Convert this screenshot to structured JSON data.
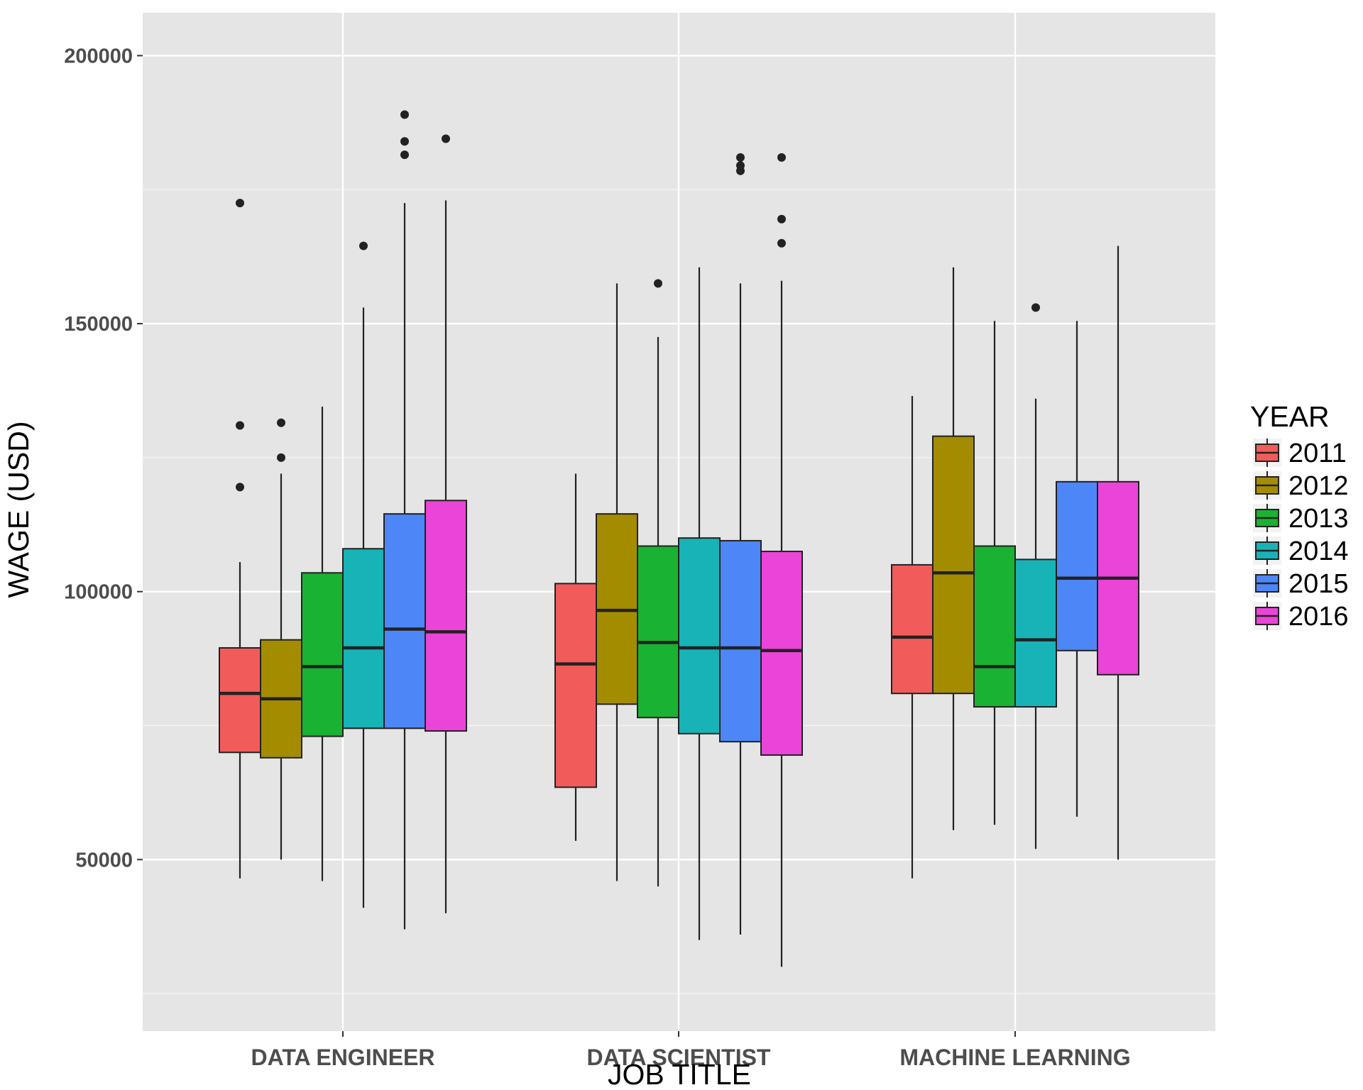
{
  "chart_data": {
    "type": "boxplot",
    "xlabel": "JOB TITLE",
    "ylabel": "WAGE (USD)",
    "ylim": [
      18000,
      208000
    ],
    "y_ticks": [
      50000,
      100000,
      150000,
      200000
    ],
    "y_tick_labels": [
      "50000",
      "100000",
      "150000",
      "200000"
    ],
    "grid": true,
    "categories": [
      "DATA ENGINEER",
      "DATA SCIENTIST",
      "MACHINE LEARNING"
    ],
    "legend": {
      "title": "YEAR",
      "position": "right"
    },
    "series": [
      {
        "name": "2011",
        "color": "#F15C5A",
        "boxes": [
          {
            "min": 46500,
            "q1": 70000,
            "median": 81000,
            "q3": 89500,
            "max": 105500,
            "outliers": [
              119500,
              131000,
              172500
            ]
          },
          {
            "min": 53500,
            "q1": 63500,
            "median": 86500,
            "q3": 101500,
            "max": 122000,
            "outliers": []
          },
          {
            "min": 46500,
            "q1": 81000,
            "median": 91500,
            "q3": 105000,
            "max": 136500,
            "outliers": []
          }
        ]
      },
      {
        "name": "2012",
        "color": "#A48C00",
        "boxes": [
          {
            "min": 50000,
            "q1": 69000,
            "median": 80000,
            "q3": 91000,
            "max": 122000,
            "outliers": [
              125000,
              131500
            ]
          },
          {
            "min": 46000,
            "q1": 79000,
            "median": 96500,
            "q3": 114500,
            "max": 157500,
            "outliers": []
          },
          {
            "min": 55500,
            "q1": 81000,
            "median": 103500,
            "q3": 129000,
            "max": 160500,
            "outliers": []
          }
        ]
      },
      {
        "name": "2013",
        "color": "#19B232",
        "boxes": [
          {
            "min": 46000,
            "q1": 73000,
            "median": 86000,
            "q3": 103500,
            "max": 134500,
            "outliers": []
          },
          {
            "min": 45000,
            "q1": 76500,
            "median": 90500,
            "q3": 108500,
            "max": 147500,
            "outliers": [
              157500
            ]
          },
          {
            "min": 56500,
            "q1": 78500,
            "median": 86000,
            "q3": 108500,
            "max": 150500,
            "outliers": []
          }
        ]
      },
      {
        "name": "2014",
        "color": "#17B3B6",
        "boxes": [
          {
            "min": 41000,
            "q1": 74500,
            "median": 89500,
            "q3": 108000,
            "max": 153000,
            "outliers": [
              164500
            ]
          },
          {
            "min": 35000,
            "q1": 73500,
            "median": 89500,
            "q3": 110000,
            "max": 160500,
            "outliers": []
          },
          {
            "min": 52000,
            "q1": 78500,
            "median": 91000,
            "q3": 106000,
            "max": 136000,
            "outliers": [
              153000
            ]
          }
        ]
      },
      {
        "name": "2015",
        "color": "#4D86F7",
        "boxes": [
          {
            "min": 37000,
            "q1": 74500,
            "median": 93000,
            "q3": 114500,
            "max": 172500,
            "outliers": [
              181500,
              184000,
              189000
            ]
          },
          {
            "min": 36000,
            "q1": 72000,
            "median": 89500,
            "q3": 109500,
            "max": 157500,
            "outliers": [
              178500,
              179500,
              181000
            ]
          },
          {
            "min": 58000,
            "q1": 89000,
            "median": 102500,
            "q3": 120500,
            "max": 150500,
            "outliers": []
          }
        ]
      },
      {
        "name": "2016",
        "color": "#EB44D8",
        "boxes": [
          {
            "min": 40000,
            "q1": 74000,
            "median": 92500,
            "q3": 117000,
            "max": 173000,
            "outliers": [
              184500
            ]
          },
          {
            "min": 30000,
            "q1": 69500,
            "median": 89000,
            "q3": 107500,
            "max": 158000,
            "outliers": [
              165000,
              169500,
              181000
            ]
          },
          {
            "min": 50000,
            "q1": 84500,
            "median": 102500,
            "q3": 120500,
            "max": 164500,
            "outliers": []
          }
        ]
      }
    ]
  }
}
